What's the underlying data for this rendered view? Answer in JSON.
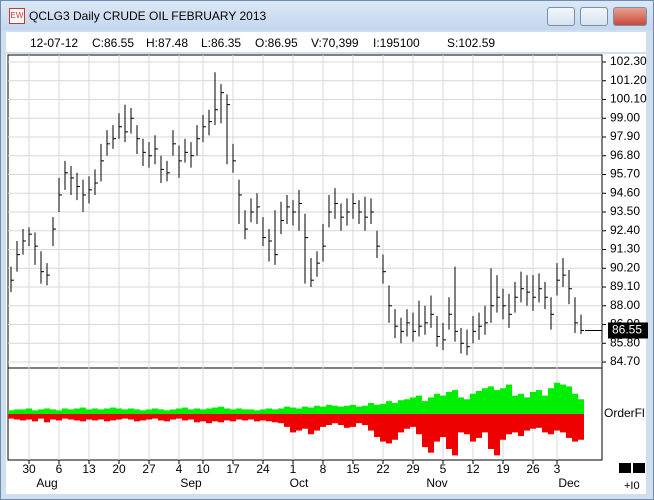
{
  "window": {
    "title": "QCLG3 Daily CRUDE OIL FEBRUARY 2013"
  },
  "info": [
    "12-07-12",
    "C:86.55",
    "H:87.48",
    "L:86.35",
    "O:86.95",
    "V:70,399",
    "I:195100",
    "S:102.59"
  ],
  "chart_data": {
    "type": "ohlc",
    "color": "#000000",
    "grid": true,
    "high": [
      90.3,
      91.8,
      92.5,
      92.6,
      92.3,
      91.2,
      90.5,
      93.2,
      95.5,
      96.5,
      96.2,
      95.8,
      95.4,
      95.6,
      96,
      97.5,
      98.3,
      98.6,
      99.3,
      99.8,
      99.6,
      98.6,
      97.8,
      97.6,
      98,
      96.8,
      96.5,
      98.3,
      97.4,
      97.8,
      97.6,
      98.6,
      99.2,
      99.5,
      101.7,
      101,
      100.4,
      97.5,
      95.4,
      93.6,
      94.3,
      94.6,
      93.2,
      92.5,
      93.6,
      94.1,
      94.5,
      94.2,
      94.8,
      93.4,
      90.8,
      91.2,
      92.8,
      94.5,
      94.9,
      94,
      94.3,
      94.6,
      94.2,
      94.4,
      94.3,
      92.4,
      91,
      89.2,
      87.8,
      87.3,
      87.8,
      87.6,
      88.3,
      88,
      88.6,
      87.4,
      87,
      88.5,
      90.3,
      86.7,
      86.6,
      87.4,
      87.6,
      88,
      90.2,
      89.8,
      89,
      88.7,
      89.4,
      90,
      89.8,
      89.8,
      89.9,
      89.4,
      88.5,
      90.5,
      90.8,
      90.1,
      88.5,
      87.48
    ],
    "low": [
      88.8,
      90,
      91,
      91.5,
      90.4,
      89.3,
      89.2,
      91.5,
      93.5,
      94.8,
      94.5,
      94.2,
      93.5,
      94,
      94.5,
      95.3,
      96.8,
      97.2,
      97.8,
      97.6,
      98.1,
      96.9,
      96.2,
      96.1,
      96.3,
      95.2,
      95.3,
      96.8,
      95.5,
      96.4,
      96.1,
      96.8,
      97.6,
      98,
      98.6,
      98.7,
      96.3,
      95.8,
      92.8,
      91.9,
      92.9,
      92.8,
      91.5,
      90.6,
      90.4,
      92.2,
      92.8,
      92.7,
      92.4,
      89.3,
      89.1,
      89.7,
      90.6,
      92.6,
      93.1,
      92.4,
      92.7,
      93.1,
      92.8,
      92.4,
      92.8,
      90.8,
      89.3,
      87,
      86.1,
      85.8,
      86.2,
      85.9,
      86.2,
      86.3,
      86.7,
      85.6,
      85.4,
      86.6,
      85.9,
      85.2,
      85.1,
      85.8,
      86,
      86.3,
      87,
      87.6,
      87.2,
      86.7,
      87.6,
      88.2,
      88,
      87.7,
      88.2,
      87.8,
      86.6,
      88.6,
      89.1,
      88.1,
      86.4,
      86.35
    ],
    "close": [
      89.5,
      91,
      91.8,
      92.2,
      91.5,
      90,
      89.8,
      92.5,
      94.5,
      95.8,
      95.5,
      95,
      94.5,
      94.8,
      95.2,
      96.5,
      97.5,
      97.8,
      98.5,
      98.2,
      99,
      97.8,
      97,
      96.8,
      97.2,
      96,
      95.8,
      97.5,
      96.5,
      97,
      96.8,
      97.8,
      98.5,
      98.8,
      99.5,
      100.5,
      99.8,
      96.5,
      94.5,
      92.5,
      93.5,
      93.8,
      92,
      91.8,
      91,
      93,
      93.8,
      93.5,
      94,
      92,
      89.5,
      90.5,
      91.5,
      93.5,
      94,
      93.2,
      93.5,
      94,
      93.5,
      93.2,
      93.5,
      91.5,
      90,
      88,
      86.8,
      86.5,
      87,
      86.5,
      86.8,
      87,
      87.5,
      86.2,
      86,
      87.5,
      86.5,
      85.8,
      85.6,
      86.5,
      86.8,
      87,
      88,
      88.5,
      88,
      87.5,
      88.5,
      89,
      88.8,
      88.5,
      89,
      88.5,
      87.5,
      89.5,
      89.8,
      89,
      87,
      86.55
    ],
    "last_label": "86.55",
    "xlim": [
      -0.5,
      98.5
    ],
    "xticks": [
      {
        "value": 3,
        "label": "30"
      },
      {
        "value": 8,
        "label": "6"
      },
      {
        "value": 13,
        "label": "13"
      },
      {
        "value": 18,
        "label": "20"
      },
      {
        "value": 23,
        "label": "27"
      },
      {
        "value": 28,
        "label": "4"
      },
      {
        "value": 32,
        "label": "10"
      },
      {
        "value": 37,
        "label": "17"
      },
      {
        "value": 42,
        "label": "24"
      },
      {
        "value": 47,
        "label": "1"
      },
      {
        "value": 52,
        "label": "8"
      },
      {
        "value": 57,
        "label": "15"
      },
      {
        "value": 62,
        "label": "22"
      },
      {
        "value": 67,
        "label": "29"
      },
      {
        "value": 72,
        "label": "5"
      },
      {
        "value": 77,
        "label": "12"
      },
      {
        "value": 82,
        "label": "19"
      },
      {
        "value": 87,
        "label": "26"
      },
      {
        "value": 91,
        "label": "3"
      }
    ],
    "months": [
      {
        "value": 6,
        "label": "Aug"
      },
      {
        "value": 30,
        "label": "Sep"
      },
      {
        "value": 48,
        "label": "Oct"
      },
      {
        "value": 71,
        "label": "Nov"
      },
      {
        "value": 93,
        "label": "Dec"
      }
    ],
    "ylim": [
      84.35,
      102.71
    ],
    "yticks": [
      {
        "value": 102.3,
        "label": "102.30"
      },
      {
        "value": 101.2,
        "label": "101.20"
      },
      {
        "value": 100.1,
        "label": "100.10"
      },
      {
        "value": 99,
        "label": "99.00"
      },
      {
        "value": 97.9,
        "label": "97.90"
      },
      {
        "value": 96.8,
        "label": "96.80"
      },
      {
        "value": 95.7,
        "label": "95.70"
      },
      {
        "value": 94.6,
        "label": "94.60"
      },
      {
        "value": 93.5,
        "label": "93.50"
      },
      {
        "value": 92.4,
        "label": "92.40"
      },
      {
        "value": 91.3,
        "label": "91.30"
      },
      {
        "value": 90.2,
        "label": "90.20"
      },
      {
        "value": 89.1,
        "label": "89.10"
      },
      {
        "value": 88,
        "label": "88.00"
      },
      {
        "value": 86.9,
        "label": "86.90"
      },
      {
        "value": 85.8,
        "label": "85.80"
      },
      {
        "value": 84.7,
        "label": "84.70"
      }
    ],
    "lower": {
      "title": "OrderFl",
      "ylim": [
        -50,
        50
      ],
      "series": [
        {
          "color": "#00ee00",
          "values": [
            4,
            5,
            5,
            6,
            4,
            5,
            6,
            5,
            4,
            6,
            5,
            6,
            7,
            5,
            6,
            5,
            6,
            7,
            6,
            5,
            6,
            5,
            4,
            5,
            6,
            5,
            4,
            5,
            6,
            7,
            5,
            6,
            5,
            6,
            7,
            8,
            6,
            5,
            6,
            5,
            5,
            4,
            5,
            6,
            5,
            6,
            8,
            7,
            6,
            8,
            7,
            9,
            8,
            10,
            9,
            8,
            9,
            10,
            8,
            9,
            12,
            10,
            11,
            14,
            12,
            15,
            16,
            18,
            20,
            14,
            18,
            22,
            20,
            24,
            26,
            18,
            16,
            22,
            25,
            28,
            30,
            26,
            28,
            32,
            20,
            22,
            18,
            24,
            26,
            20,
            28,
            34,
            32,
            30,
            22,
            16
          ]
        },
        {
          "color": "#ee0000",
          "values": [
            -5,
            -6,
            -7,
            -6,
            -8,
            -5,
            -9,
            -6,
            -7,
            -5,
            -6,
            -7,
            -8,
            -6,
            -7,
            -6,
            -8,
            -7,
            -6,
            -5,
            -6,
            -8,
            -7,
            -6,
            -5,
            -7,
            -8,
            -6,
            -5,
            -7,
            -6,
            -9,
            -8,
            -10,
            -8,
            -9,
            -7,
            -8,
            -6,
            -7,
            -6,
            -8,
            -7,
            -8,
            -9,
            -10,
            -14,
            -20,
            -18,
            -16,
            -22,
            -18,
            -14,
            -12,
            -10,
            -12,
            -15,
            -14,
            -10,
            -12,
            -18,
            -25,
            -30,
            -32,
            -28,
            -20,
            -16,
            -14,
            -22,
            -36,
            -42,
            -30,
            -25,
            -38,
            -45,
            -20,
            -22,
            -30,
            -26,
            -20,
            -38,
            -45,
            -28,
            -22,
            -20,
            -24,
            -18,
            -16,
            -15,
            -20,
            -22,
            -18,
            -20,
            -26,
            -30,
            -28
          ]
        }
      ]
    },
    "corner_label": "+I0"
  }
}
